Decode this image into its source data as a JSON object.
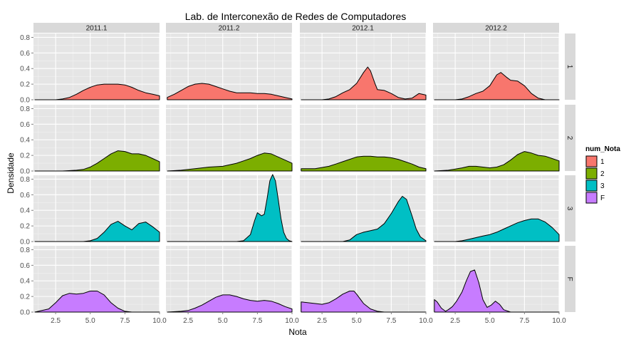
{
  "chart_data": {
    "type": "area",
    "title": "Lab. de Interconexão de Redes de Computadores",
    "xlabel": "Nota",
    "ylabel": "Densidade",
    "xlim": [
      0.9,
      10.0
    ],
    "ylim": [
      0,
      0.85
    ],
    "x_ticks": [
      2.5,
      5.0,
      7.5,
      10.0
    ],
    "x_tick_labels": [
      "2.5",
      "5.0",
      "7.5",
      "10.0"
    ],
    "y_ticks": [
      0,
      0.2,
      0.4,
      0.6,
      0.8
    ],
    "y_tick_labels": [
      "0.0",
      "0.2",
      "0.4",
      "0.6",
      "0.8"
    ],
    "grid": true,
    "legend_position": "right",
    "legend": {
      "title": "num_Nota",
      "items": [
        {
          "label": "1",
          "color": "#F8766D"
        },
        {
          "label": "2",
          "color": "#7CAE00"
        },
        {
          "label": "3",
          "color": "#00BFC4"
        },
        {
          "label": "F",
          "color": "#C77CFF"
        }
      ]
    },
    "facet_columns": [
      "2011.1",
      "2011.2",
      "2012.1",
      "2012.2"
    ],
    "facet_rows": [
      "1",
      "2",
      "3",
      "F"
    ],
    "panels": [
      {
        "row": "1",
        "col": "2011.1",
        "x": [
          1.0,
          2.5,
          3.0,
          3.5,
          4.0,
          4.5,
          5.0,
          5.5,
          6.0,
          6.5,
          7.0,
          7.5,
          8.0,
          8.5,
          9.0,
          9.5,
          10.0
        ],
        "y": [
          0,
          0,
          0.01,
          0.03,
          0.07,
          0.12,
          0.16,
          0.19,
          0.2,
          0.2,
          0.2,
          0.19,
          0.16,
          0.12,
          0.09,
          0.07,
          0.05
        ]
      },
      {
        "row": "1",
        "col": "2011.2",
        "x": [
          1.0,
          1.5,
          2.0,
          2.5,
          3.0,
          3.5,
          4.0,
          4.5,
          5.0,
          5.5,
          6.0,
          6.5,
          7.0,
          7.5,
          8.0,
          8.5,
          9.0,
          9.5,
          10.0
        ],
        "y": [
          0.03,
          0.07,
          0.12,
          0.17,
          0.2,
          0.21,
          0.2,
          0.17,
          0.14,
          0.11,
          0.09,
          0.09,
          0.09,
          0.08,
          0.08,
          0.07,
          0.05,
          0.03,
          0.01
        ]
      },
      {
        "row": "1",
        "col": "2012.1",
        "x": [
          1.0,
          2.5,
          3.0,
          3.5,
          4.0,
          4.5,
          5.0,
          5.5,
          5.8,
          6.0,
          6.3,
          6.5,
          7.0,
          7.5,
          8.0,
          8.5,
          9.0,
          9.5,
          10.0
        ],
        "y": [
          0,
          0,
          0.01,
          0.04,
          0.09,
          0.13,
          0.21,
          0.35,
          0.42,
          0.37,
          0.22,
          0.13,
          0.12,
          0.08,
          0.03,
          0.01,
          0.02,
          0.08,
          0.06
        ]
      },
      {
        "row": "1",
        "col": "2012.2",
        "x": [
          1.0,
          2.5,
          3.0,
          3.5,
          4.0,
          4.5,
          5.0,
          5.5,
          5.8,
          6.2,
          6.5,
          7.0,
          7.5,
          8.0,
          8.5,
          9.0,
          10.0
        ],
        "y": [
          0,
          0,
          0.01,
          0.04,
          0.08,
          0.11,
          0.18,
          0.32,
          0.35,
          0.29,
          0.25,
          0.24,
          0.18,
          0.08,
          0.02,
          0,
          0
        ]
      },
      {
        "row": "2",
        "col": "2011.1",
        "x": [
          1.0,
          3.0,
          4.0,
          4.5,
          5.0,
          5.5,
          6.0,
          6.5,
          7.0,
          7.5,
          8.0,
          8.5,
          9.0,
          9.5,
          10.0
        ],
        "y": [
          0,
          0,
          0.01,
          0.02,
          0.05,
          0.1,
          0.16,
          0.22,
          0.26,
          0.25,
          0.22,
          0.22,
          0.2,
          0.16,
          0.12
        ]
      },
      {
        "row": "2",
        "col": "2011.2",
        "x": [
          1.0,
          2.0,
          3.0,
          4.0,
          5.0,
          5.5,
          6.0,
          6.5,
          7.0,
          7.5,
          8.0,
          8.5,
          9.0,
          9.5,
          10.0
        ],
        "y": [
          0,
          0.01,
          0.03,
          0.05,
          0.06,
          0.08,
          0.1,
          0.13,
          0.16,
          0.2,
          0.23,
          0.22,
          0.18,
          0.14,
          0.1
        ]
      },
      {
        "row": "2",
        "col": "2012.1",
        "x": [
          1.0,
          2.0,
          3.0,
          3.5,
          4.0,
          4.5,
          5.0,
          5.5,
          6.0,
          6.5,
          7.0,
          7.5,
          8.0,
          8.5,
          9.0,
          9.5,
          10.0
        ],
        "y": [
          0.03,
          0.03,
          0.06,
          0.09,
          0.12,
          0.15,
          0.18,
          0.19,
          0.19,
          0.18,
          0.18,
          0.17,
          0.15,
          0.12,
          0.09,
          0.05,
          0.03
        ]
      },
      {
        "row": "2",
        "col": "2012.2",
        "x": [
          1.0,
          2.0,
          3.0,
          3.5,
          4.0,
          4.5,
          5.0,
          5.5,
          6.0,
          6.5,
          7.0,
          7.5,
          8.0,
          8.5,
          9.0,
          9.5,
          10.0
        ],
        "y": [
          0,
          0.01,
          0.04,
          0.06,
          0.06,
          0.05,
          0.04,
          0.05,
          0.08,
          0.14,
          0.21,
          0.25,
          0.23,
          0.2,
          0.19,
          0.16,
          0.13
        ]
      },
      {
        "row": "3",
        "col": "2011.1",
        "x": [
          1.0,
          4.5,
          5.0,
          5.5,
          6.0,
          6.5,
          7.0,
          7.5,
          8.0,
          8.5,
          9.0,
          9.5,
          10.0
        ],
        "y": [
          0,
          0,
          0.01,
          0.04,
          0.12,
          0.22,
          0.26,
          0.2,
          0.15,
          0.23,
          0.25,
          0.19,
          0.12
        ]
      },
      {
        "row": "3",
        "col": "2011.2",
        "x": [
          1.0,
          6.0,
          6.5,
          7.0,
          7.3,
          7.5,
          7.8,
          8.0,
          8.2,
          8.4,
          8.6,
          8.8,
          9.0,
          9.2,
          9.4,
          9.6,
          9.8,
          10.0
        ],
        "y": [
          0,
          0,
          0.01,
          0.09,
          0.27,
          0.37,
          0.33,
          0.35,
          0.55,
          0.78,
          0.86,
          0.78,
          0.55,
          0.3,
          0.12,
          0.04,
          0.01,
          0
        ]
      },
      {
        "row": "3",
        "col": "2012.1",
        "x": [
          1.0,
          4.0,
          4.5,
          5.0,
          5.5,
          6.0,
          6.5,
          7.0,
          7.5,
          8.0,
          8.3,
          8.6,
          9.0,
          9.3,
          9.6,
          10.0
        ],
        "y": [
          0,
          0,
          0.02,
          0.09,
          0.12,
          0.14,
          0.16,
          0.23,
          0.36,
          0.51,
          0.58,
          0.54,
          0.33,
          0.16,
          0.06,
          0.01
        ]
      },
      {
        "row": "3",
        "col": "2012.2",
        "x": [
          1.0,
          2.5,
          3.0,
          3.5,
          4.0,
          4.5,
          5.0,
          5.5,
          6.0,
          6.5,
          7.0,
          7.5,
          8.0,
          8.5,
          9.0,
          9.5,
          10.0
        ],
        "y": [
          0,
          0,
          0.01,
          0.03,
          0.05,
          0.07,
          0.09,
          0.12,
          0.16,
          0.2,
          0.24,
          0.27,
          0.29,
          0.29,
          0.25,
          0.18,
          0.09
        ]
      },
      {
        "row": "F",
        "col": "2011.1",
        "x": [
          1.0,
          2.0,
          2.5,
          3.0,
          3.5,
          4.0,
          4.5,
          5.0,
          5.5,
          6.0,
          6.5,
          7.0,
          7.5,
          8.0,
          8.5,
          9.0,
          10.0
        ],
        "y": [
          0,
          0.04,
          0.12,
          0.21,
          0.24,
          0.23,
          0.24,
          0.27,
          0.27,
          0.22,
          0.12,
          0.05,
          0.01,
          0,
          0,
          0,
          0
        ]
      },
      {
        "row": "F",
        "col": "2011.2",
        "x": [
          1.0,
          2.0,
          2.5,
          3.0,
          3.5,
          4.0,
          4.5,
          5.0,
          5.5,
          6.0,
          6.5,
          7.0,
          7.5,
          8.0,
          8.5,
          9.0,
          9.5,
          10.0
        ],
        "y": [
          0,
          0.01,
          0.02,
          0.05,
          0.09,
          0.14,
          0.19,
          0.22,
          0.22,
          0.2,
          0.17,
          0.15,
          0.14,
          0.15,
          0.14,
          0.11,
          0.07,
          0.04
        ]
      },
      {
        "row": "F",
        "col": "2012.1",
        "x": [
          1.0,
          1.5,
          2.0,
          2.5,
          3.0,
          3.5,
          4.0,
          4.5,
          4.8,
          5.0,
          5.5,
          6.0,
          6.5,
          7.0,
          8.0,
          10.0
        ],
        "y": [
          0.13,
          0.12,
          0.11,
          0.1,
          0.12,
          0.17,
          0.23,
          0.27,
          0.27,
          0.23,
          0.11,
          0.04,
          0.01,
          0,
          0,
          0
        ]
      },
      {
        "row": "F",
        "col": "2012.2",
        "x": [
          1.0,
          1.2,
          1.5,
          1.8,
          2.0,
          2.3,
          2.6,
          3.0,
          3.3,
          3.6,
          3.9,
          4.2,
          4.5,
          4.8,
          5.1,
          5.4,
          5.7,
          6.0,
          6.5,
          7.0,
          10.0
        ],
        "y": [
          0.16,
          0.13,
          0.05,
          0.01,
          0.03,
          0.07,
          0.14,
          0.26,
          0.4,
          0.52,
          0.54,
          0.38,
          0.16,
          0.06,
          0.09,
          0.14,
          0.1,
          0.03,
          0,
          0,
          0
        ]
      }
    ]
  }
}
